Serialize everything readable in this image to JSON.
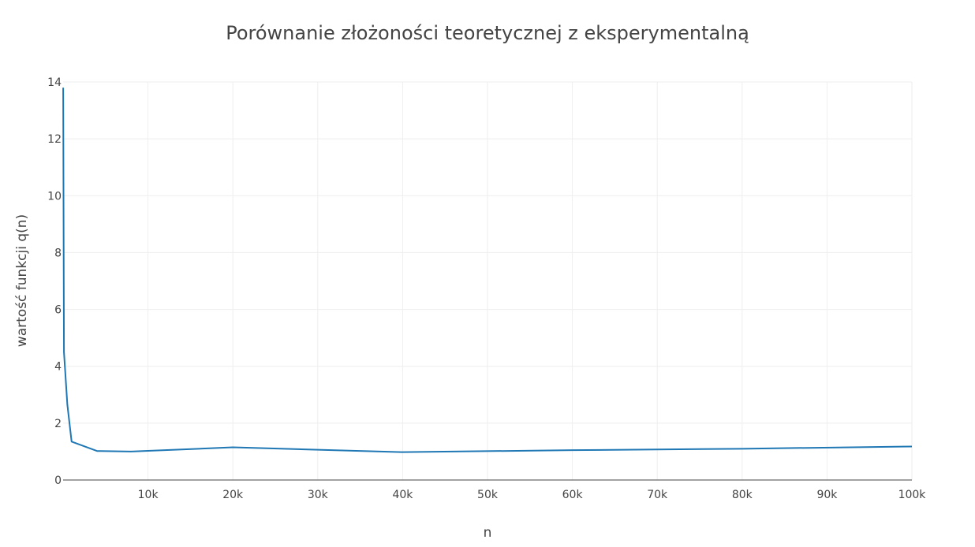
{
  "chart_data": {
    "type": "line",
    "title": "Porównanie złożoności teoretycznej z eksperymentalną",
    "xlabel": "n",
    "ylabel": "wartość funkcji q(n)",
    "xlim": [
      0,
      100000
    ],
    "ylim": [
      0,
      14
    ],
    "x_ticks": [
      10000,
      20000,
      30000,
      40000,
      50000,
      60000,
      70000,
      80000,
      90000,
      100000
    ],
    "x_tick_labels": [
      "10k",
      "20k",
      "30k",
      "40k",
      "50k",
      "60k",
      "70k",
      "80k",
      "90k",
      "100k"
    ],
    "y_ticks": [
      0,
      2,
      4,
      6,
      8,
      10,
      12,
      14
    ],
    "y_tick_labels": [
      "0",
      "2",
      "4",
      "6",
      "8",
      "10",
      "12",
      "14"
    ],
    "grid": true,
    "series": [
      {
        "color": "#1f77b4",
        "x": [
          10,
          100,
          500,
          1000,
          4000,
          8000,
          20000,
          40000,
          60000,
          80000,
          100000
        ],
        "y": [
          13.8,
          4.5,
          2.65,
          1.35,
          1.02,
          1.0,
          1.15,
          0.98,
          1.05,
          1.1,
          1.18
        ]
      }
    ]
  }
}
